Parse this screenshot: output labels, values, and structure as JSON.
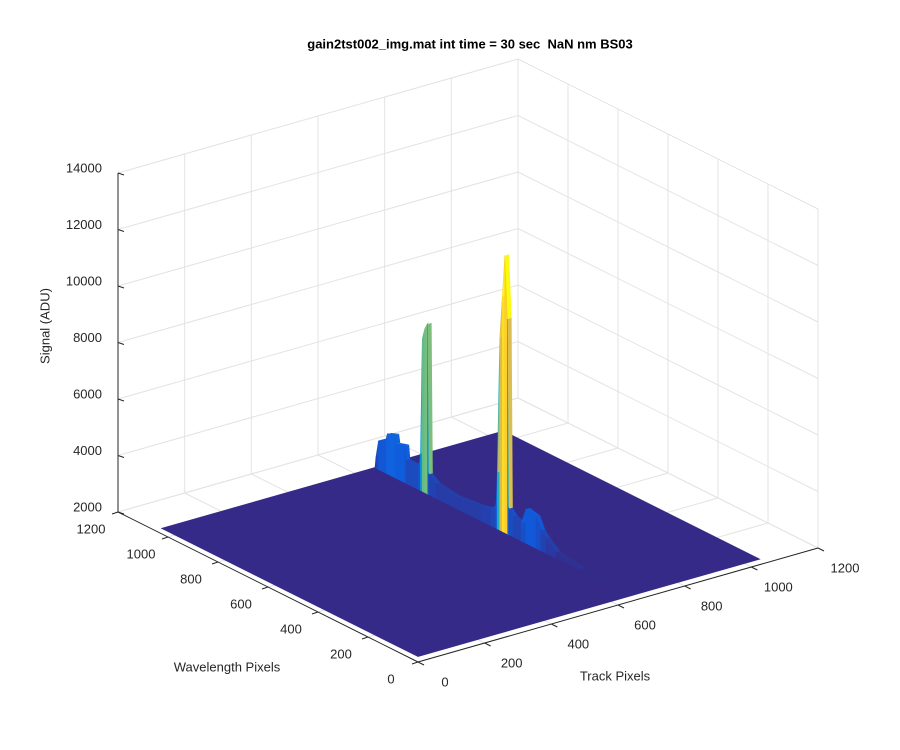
{
  "chart_data": {
    "type": "surface",
    "title": "gain2tst002_img.mat int time = 30 sec  NaN nm BS03",
    "xlabel": "Track Pixels",
    "ylabel": "Wavelength Pixels",
    "zlabel": "Signal (ADU)",
    "xlim": [
      0,
      1200
    ],
    "ylim": [
      0,
      1200
    ],
    "zlim": [
      2000,
      14000
    ],
    "xticks": [
      0,
      200,
      400,
      600,
      800,
      1000,
      1200
    ],
    "yticks": [
      0,
      200,
      400,
      600,
      800,
      1000,
      1200
    ],
    "zticks": [
      2000,
      4000,
      6000,
      8000,
      10000,
      12000,
      14000
    ],
    "grid": true,
    "colormap": "parula",
    "surface_x": [
      0,
      1024
    ],
    "surface_y": [
      0,
      1024
    ],
    "surface_level": 2200,
    "ridge_x": 640,
    "y": [
      0,
      200,
      300,
      340,
      360,
      380,
      420,
      440,
      470,
      490,
      495,
      505,
      515,
      525,
      535,
      540,
      560,
      600,
      700,
      780,
      810,
      815,
      825,
      835,
      842,
      850,
      900,
      905,
      940,
      945,
      975,
      980,
      1010,
      1020,
      1024
    ],
    "values": [
      2200,
      2250,
      2400,
      2700,
      2900,
      3300,
      3400,
      2800,
      2900,
      3100,
      9800,
      12000,
      10500,
      9000,
      4200,
      3000,
      2800,
      2700,
      2600,
      2700,
      2900,
      8200,
      8000,
      7600,
      3500,
      3000,
      3000,
      3500,
      3400,
      3700,
      3600,
      3400,
      3200,
      2600,
      2200
    ]
  }
}
